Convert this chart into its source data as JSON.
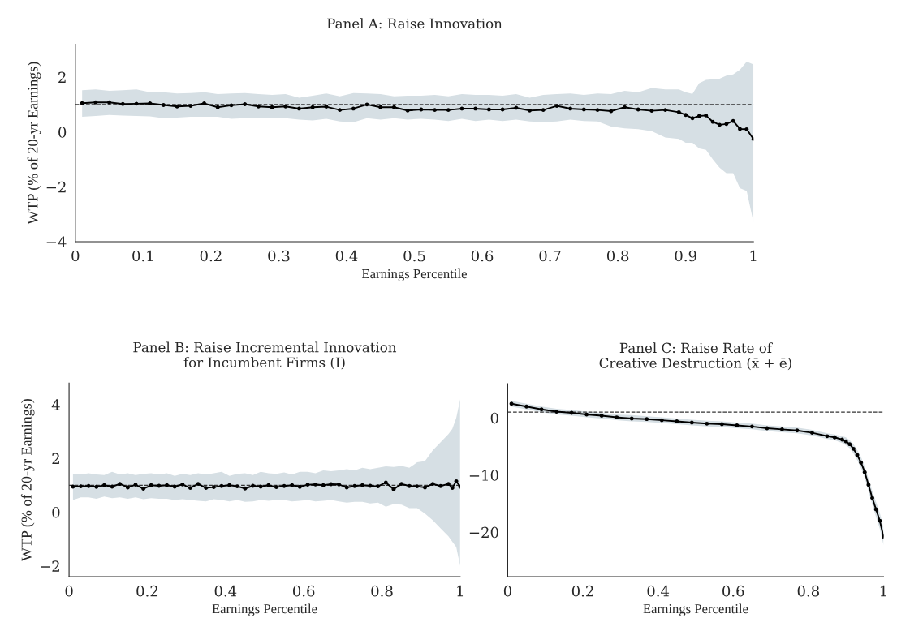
{
  "chart_data": [
    {
      "type": "line",
      "title": "Panel A: Raise Innovation",
      "xlabel": "Earnings Percentile",
      "ylabel": "WTP (% of 20-yr Earnings)",
      "xlim": [
        0,
        1
      ],
      "ylim": [
        -4,
        3.2
      ],
      "xticks": [
        0,
        0.1,
        0.2,
        0.3,
        0.4,
        0.5,
        0.6,
        0.7,
        0.8,
        0.9,
        1
      ],
      "yticks": [
        {
          "value": -4,
          "label": "−4"
        },
        {
          "value": -2,
          "label": "−2"
        },
        0,
        2
      ],
      "grid": false,
      "marker": "circle",
      "line_style": "solid",
      "ref_lines": [
        {
          "axis": "y",
          "value": 1,
          "color": "#333333",
          "line_style": "dashed"
        }
      ],
      "series": [
        {
          "color": "#000000",
          "x": [
            0.01,
            0.03,
            0.05,
            0.07,
            0.09,
            0.11,
            0.13,
            0.15,
            0.17,
            0.19,
            0.21,
            0.23,
            0.25,
            0.27,
            0.29,
            0.31,
            0.33,
            0.35,
            0.37,
            0.39,
            0.41,
            0.43,
            0.45,
            0.47,
            0.49,
            0.51,
            0.53,
            0.55,
            0.57,
            0.59,
            0.61,
            0.63,
            0.65,
            0.67,
            0.69,
            0.71,
            0.73,
            0.75,
            0.77,
            0.79,
            0.81,
            0.83,
            0.85,
            0.87,
            0.89,
            0.9,
            0.91,
            0.92,
            0.93,
            0.94,
            0.95,
            0.96,
            0.97,
            0.98,
            0.99,
            1.0
          ],
          "values": [
            1.05,
            1.08,
            1.08,
            1.02,
            1.03,
            1.04,
            0.98,
            0.93,
            0.95,
            1.04,
            0.9,
            0.97,
            1.01,
            0.93,
            0.9,
            0.93,
            0.85,
            0.9,
            0.92,
            0.8,
            0.85,
            1.0,
            0.9,
            0.9,
            0.78,
            0.82,
            0.8,
            0.8,
            0.85,
            0.85,
            0.82,
            0.82,
            0.88,
            0.78,
            0.8,
            0.95,
            0.85,
            0.82,
            0.8,
            0.76,
            0.9,
            0.82,
            0.77,
            0.8,
            0.72,
            0.62,
            0.5,
            0.58,
            0.6,
            0.37,
            0.26,
            0.29,
            0.4,
            0.11,
            0.1,
            -0.26
          ],
          "lower": [
            0.55,
            0.58,
            0.62,
            0.6,
            0.58,
            0.57,
            0.5,
            0.52,
            0.55,
            0.55,
            0.55,
            0.48,
            0.5,
            0.52,
            0.5,
            0.5,
            0.45,
            0.42,
            0.48,
            0.38,
            0.35,
            0.5,
            0.45,
            0.5,
            0.45,
            0.48,
            0.45,
            0.4,
            0.48,
            0.4,
            0.45,
            0.4,
            0.45,
            0.38,
            0.36,
            0.38,
            0.45,
            0.4,
            0.38,
            0.2,
            0.13,
            0.1,
            0.03,
            -0.2,
            -0.25,
            -0.39,
            -0.39,
            -0.6,
            -0.65,
            -1.0,
            -1.3,
            -1.5,
            -1.5,
            -2.05,
            -2.15,
            -3.3
          ],
          "upper": [
            1.52,
            1.55,
            1.5,
            1.52,
            1.55,
            1.45,
            1.45,
            1.4,
            1.42,
            1.45,
            1.38,
            1.4,
            1.42,
            1.38,
            1.35,
            1.38,
            1.25,
            1.32,
            1.4,
            1.3,
            1.42,
            1.4,
            1.38,
            1.3,
            1.32,
            1.32,
            1.35,
            1.3,
            1.38,
            1.35,
            1.35,
            1.32,
            1.38,
            1.25,
            1.35,
            1.38,
            1.4,
            1.35,
            1.4,
            1.38,
            1.5,
            1.45,
            1.6,
            1.55,
            1.55,
            1.45,
            1.39,
            1.78,
            1.9,
            1.92,
            1.94,
            2.05,
            2.1,
            2.27,
            2.56,
            2.46
          ]
        }
      ]
    },
    {
      "type": "line",
      "title": "Panel B: Raise Incremental Innovation\nfor Incumbent Firms (I)",
      "xlabel": "Earnings Percentile",
      "ylabel": "WTP (% of 20-yr Earnings)",
      "xlim": [
        0,
        1
      ],
      "ylim": [
        -2.4,
        4.8
      ],
      "xticks": [
        0,
        0.2,
        0.4,
        0.6,
        0.8,
        1
      ],
      "yticks": [
        {
          "value": -2,
          "label": "−2"
        },
        0,
        2,
        4
      ],
      "grid": false,
      "marker": "circle",
      "line_style": "solid",
      "ref_lines": [
        {
          "axis": "y",
          "value": 1,
          "color": "#333333",
          "line_style": "dashed"
        }
      ],
      "series": [
        {
          "color": "#000000",
          "x": [
            0.01,
            0.03,
            0.05,
            0.07,
            0.09,
            0.11,
            0.13,
            0.15,
            0.17,
            0.19,
            0.21,
            0.23,
            0.25,
            0.27,
            0.29,
            0.31,
            0.33,
            0.35,
            0.37,
            0.39,
            0.41,
            0.43,
            0.45,
            0.47,
            0.49,
            0.51,
            0.53,
            0.55,
            0.57,
            0.59,
            0.61,
            0.63,
            0.65,
            0.67,
            0.69,
            0.71,
            0.73,
            0.75,
            0.77,
            0.79,
            0.81,
            0.83,
            0.85,
            0.87,
            0.89,
            0.91,
            0.93,
            0.95,
            0.97,
            0.98,
            0.99,
            1.0
          ],
          "values": [
            0.95,
            0.96,
            0.97,
            0.94,
            1.0,
            0.95,
            1.05,
            0.92,
            1.02,
            0.87,
            1.0,
            0.98,
            1.0,
            0.95,
            1.03,
            0.9,
            1.05,
            0.9,
            0.93,
            0.97,
            1.0,
            0.96,
            0.88,
            0.98,
            0.95,
            1.0,
            0.93,
            0.97,
            1.0,
            0.94,
            1.02,
            1.03,
            1.0,
            1.04,
            1.03,
            0.92,
            0.97,
            1.0,
            0.98,
            0.96,
            1.1,
            0.85,
            1.05,
            0.97,
            0.96,
            0.92,
            1.05,
            0.97,
            1.05,
            0.9,
            1.15,
            0.95
          ],
          "lower": [
            0.45,
            0.55,
            0.55,
            0.5,
            0.58,
            0.52,
            0.55,
            0.5,
            0.55,
            0.48,
            0.52,
            0.5,
            0.5,
            0.45,
            0.48,
            0.45,
            0.42,
            0.4,
            0.48,
            0.45,
            0.4,
            0.45,
            0.38,
            0.4,
            0.45,
            0.42,
            0.45,
            0.45,
            0.4,
            0.42,
            0.45,
            0.4,
            0.42,
            0.45,
            0.4,
            0.35,
            0.38,
            0.38,
            0.32,
            0.35,
            0.2,
            0.3,
            0.28,
            0.15,
            0.15,
            -0.05,
            -0.3,
            -0.6,
            -0.9,
            -1.1,
            -1.3,
            -2.0
          ],
          "upper": [
            1.42,
            1.4,
            1.45,
            1.4,
            1.38,
            1.5,
            1.4,
            1.45,
            1.38,
            1.42,
            1.45,
            1.4,
            1.45,
            1.35,
            1.42,
            1.38,
            1.45,
            1.4,
            1.45,
            1.5,
            1.35,
            1.42,
            1.45,
            1.38,
            1.5,
            1.45,
            1.42,
            1.48,
            1.4,
            1.5,
            1.5,
            1.45,
            1.55,
            1.52,
            1.55,
            1.6,
            1.55,
            1.65,
            1.6,
            1.65,
            1.7,
            1.68,
            1.72,
            1.65,
            1.85,
            1.9,
            2.3,
            2.6,
            2.9,
            3.1,
            3.5,
            4.2
          ]
        }
      ]
    },
    {
      "type": "line",
      "title": "Panel C: Raise Rate of\nCreative Destruction (x̄ + ē)",
      "xlabel": "Earnings Percentile",
      "xlim": [
        0,
        1
      ],
      "ylim": [
        -27.8,
        6
      ],
      "xticks": [
        0,
        0.2,
        0.4,
        0.6,
        0.8,
        1
      ],
      "yticks": [
        {
          "value": -20,
          "label": "−20"
        },
        {
          "value": -10,
          "label": "−10"
        },
        0
      ],
      "grid": false,
      "marker": "circle",
      "line_style": "solid",
      "ref_lines": [
        {
          "axis": "y",
          "value": 1,
          "color": "#333333",
          "line_style": "dashed"
        }
      ],
      "series": [
        {
          "color": "#000000",
          "x": [
            0.01,
            0.05,
            0.09,
            0.13,
            0.17,
            0.21,
            0.25,
            0.29,
            0.33,
            0.37,
            0.41,
            0.45,
            0.49,
            0.53,
            0.57,
            0.61,
            0.65,
            0.69,
            0.73,
            0.77,
            0.81,
            0.85,
            0.87,
            0.89,
            0.9,
            0.91,
            0.92,
            0.93,
            0.94,
            0.95,
            0.96,
            0.97,
            0.98,
            0.99,
            1.0
          ],
          "values": [
            2.5,
            2.0,
            1.5,
            1.1,
            0.9,
            0.6,
            0.4,
            0.1,
            -0.1,
            -0.2,
            -0.4,
            -0.6,
            -0.8,
            -1.0,
            -1.1,
            -1.3,
            -1.5,
            -1.8,
            -2.0,
            -2.2,
            -2.6,
            -3.2,
            -3.4,
            -3.8,
            -4.1,
            -4.6,
            -5.4,
            -6.5,
            -7.8,
            -9.5,
            -11.7,
            -14.0,
            -16.0,
            -18.0,
            -20.8
          ],
          "lower": [
            2.0,
            1.5,
            1.0,
            0.6,
            0.4,
            0.1,
            -0.1,
            -0.4,
            -0.6,
            -0.7,
            -0.9,
            -1.1,
            -1.3,
            -1.5,
            -1.6,
            -1.8,
            -2.0,
            -2.3,
            -2.5,
            -2.7,
            -3.1,
            -3.7,
            -3.9,
            -4.4,
            -4.8,
            -5.3,
            -6.2,
            -7.4,
            -8.8,
            -10.5,
            -12.8,
            -15.2,
            -17.3,
            -19.4,
            -22.3
          ],
          "upper": [
            3.0,
            2.5,
            2.0,
            1.6,
            1.4,
            1.1,
            0.9,
            0.6,
            0.5,
            0.3,
            0.1,
            -0.1,
            -0.3,
            -0.5,
            -0.6,
            -0.8,
            -1.0,
            -1.3,
            -1.5,
            -1.7,
            -2.1,
            -2.7,
            -2.9,
            -3.2,
            -3.4,
            -3.9,
            -4.6,
            -5.6,
            -6.8,
            -8.5,
            -10.6,
            -12.8,
            -14.7,
            -16.6,
            -19.3
          ]
        }
      ]
    }
  ]
}
